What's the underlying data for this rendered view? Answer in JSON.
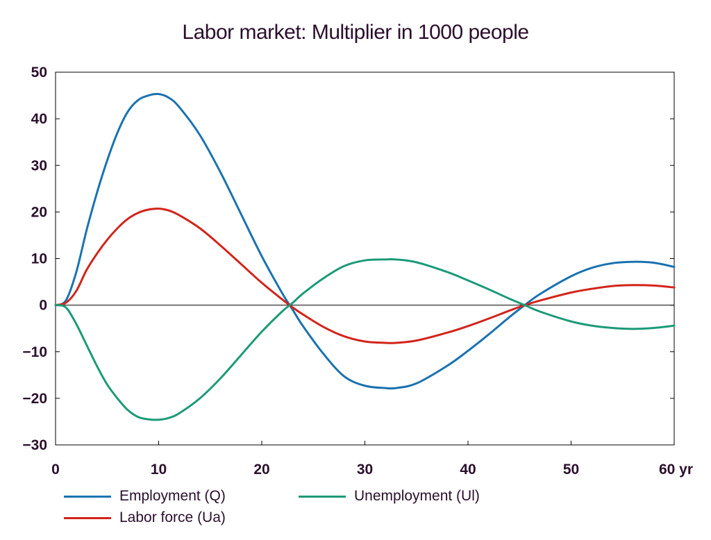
{
  "chart_data": {
    "type": "line",
    "title": "Labor market: Multiplier in 1000 people",
    "xlabel": "",
    "x_unit_label": "yr",
    "ylabel": "",
    "xlim": [
      0,
      60
    ],
    "ylim": [
      -30,
      50
    ],
    "x_ticks": [
      0,
      10,
      20,
      30,
      40,
      50,
      60
    ],
    "x_tick_labels": [
      "0",
      "10",
      "20",
      "30",
      "40",
      "50",
      "60 yr"
    ],
    "y_ticks": [
      50,
      40,
      30,
      20,
      10,
      0,
      -10,
      -20,
      -30
    ],
    "y_tick_labels": [
      "50",
      "40",
      "30",
      "20",
      "10",
      "0",
      "−10",
      "−20",
      "−30"
    ],
    "grid": false,
    "zero_line": true,
    "legend_position": "bottom",
    "series": [
      {
        "name": "Employment (Q)",
        "color": "#1a72b0",
        "x": [
          0,
          1,
          2,
          3,
          4,
          5,
          6,
          7,
          8,
          9,
          10,
          11,
          12,
          14,
          16,
          18,
          20,
          22,
          23,
          24,
          26,
          28,
          30,
          32,
          33,
          35,
          38,
          40,
          42,
          44,
          45.5,
          47,
          50,
          52,
          54,
          56,
          58,
          60
        ],
        "y": [
          0,
          1,
          7,
          16,
          24,
          31,
          37,
          41.5,
          44,
          45,
          45.3,
          44.5,
          42.5,
          36.5,
          28.5,
          19.5,
          10.5,
          2.5,
          -1,
          -4.5,
          -10.5,
          -15.3,
          -17.3,
          -17.8,
          -17.8,
          -16.8,
          -13,
          -9.8,
          -6.3,
          -2.6,
          0,
          2.4,
          6.2,
          8,
          9,
          9.3,
          9.1,
          8.2
        ]
      },
      {
        "name": "Labor force (Ua)",
        "color": "#d2241a",
        "x": [
          0,
          1,
          2,
          3,
          4,
          5,
          6,
          7,
          8,
          9,
          10,
          11,
          12,
          14,
          16,
          18,
          20,
          22,
          23,
          24,
          26,
          28,
          30,
          32,
          33,
          35,
          38,
          40,
          42,
          44,
          45.5,
          47,
          50,
          52,
          54,
          56,
          58,
          60
        ],
        "y": [
          0,
          0.5,
          3,
          7.5,
          11,
          14,
          16.5,
          18.5,
          19.8,
          20.5,
          20.7,
          20.3,
          19.3,
          16.5,
          12.8,
          8.8,
          4.8,
          1.2,
          -0.5,
          -2,
          -4.7,
          -6.7,
          -7.8,
          -8.1,
          -8.1,
          -7.6,
          -5.9,
          -4.5,
          -2.9,
          -1.2,
          0,
          1,
          2.7,
          3.5,
          4.1,
          4.3,
          4.2,
          3.8
        ]
      },
      {
        "name": "Unemployment (Ul)",
        "color": "#1c9a78",
        "x": [
          0,
          1,
          2,
          3,
          4,
          5,
          6,
          7,
          8,
          9,
          10,
          11,
          12,
          14,
          16,
          18,
          20,
          22,
          23,
          24,
          26,
          28,
          30,
          32,
          33,
          35,
          38,
          40,
          42,
          44,
          45.5,
          47,
          50,
          52,
          54,
          56,
          58,
          60
        ],
        "y": [
          0,
          -0.5,
          -4,
          -8.5,
          -13,
          -17,
          -20,
          -22.5,
          -24,
          -24.5,
          -24.6,
          -24.2,
          -23.2,
          -20,
          -15.7,
          -10.7,
          -5.7,
          -1.3,
          0.5,
          2.5,
          5.8,
          8.4,
          9.6,
          9.8,
          9.8,
          9.2,
          7.1,
          5.3,
          3.4,
          1.4,
          0,
          -1.4,
          -3.5,
          -4.4,
          -4.9,
          -5.1,
          -4.9,
          -4.4
        ]
      }
    ]
  }
}
